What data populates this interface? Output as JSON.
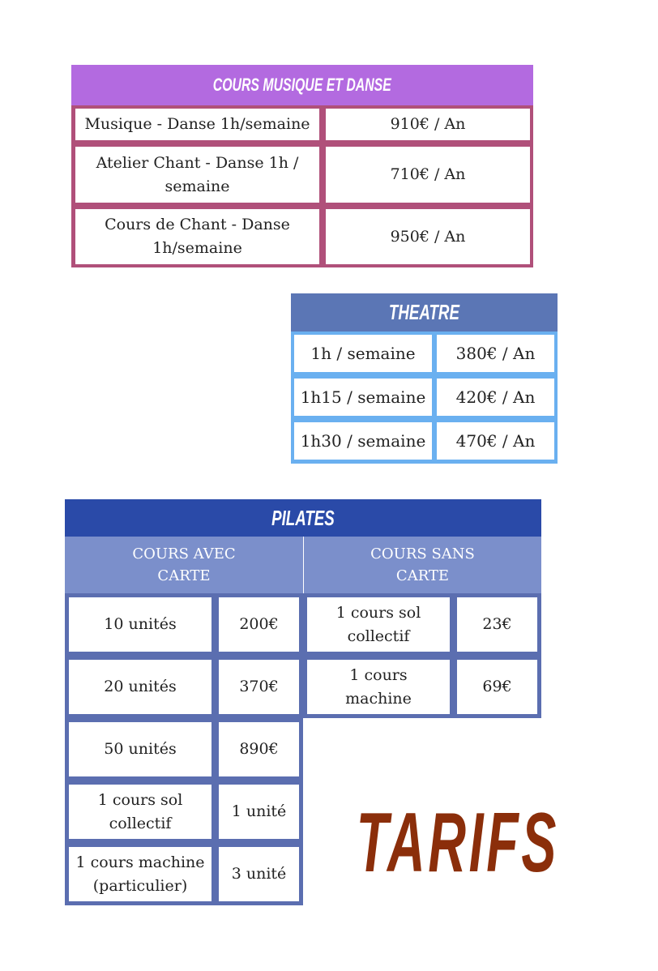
{
  "colors": {
    "music_header": "#b36ae0",
    "music_border": "#b0507a",
    "theatre_header": "#5b76b5",
    "theatre_border": "#6ab0f0",
    "pilates_header": "#2a4aa8",
    "pilates_sub": "#7b8fcb",
    "pilates_border": "#5b6eb0",
    "tarifs": "#8b2e0a"
  },
  "music": {
    "title": "COURS MUSIQUE ET DANSE",
    "rows": [
      {
        "label": "Musique - Danse 1h/semaine",
        "price": "910€  / An"
      },
      {
        "label": "Atelier Chant - Danse 1h / semaine",
        "price": "710€  / An"
      },
      {
        "label": "Cours de Chant - Danse 1h/semaine",
        "price": "950€  / An"
      }
    ]
  },
  "theatre": {
    "title": "THEATRE",
    "rows": [
      {
        "label": "1h / semaine",
        "price": "380€ / An"
      },
      {
        "label": "1h15 / semaine",
        "price": "420€ / An"
      },
      {
        "label": "1h30 / semaine",
        "price": "470€ / An"
      }
    ]
  },
  "pilates": {
    "title": "PILATES",
    "with_card": "COURS AVEC CARTE",
    "without_card": "COURS SANS CARTE",
    "card_rows": [
      {
        "label": "10 unités",
        "price": "200€"
      },
      {
        "label": "20 unités",
        "price": "370€"
      },
      {
        "label": "50 unités",
        "price": "890€"
      },
      {
        "label": "1 cours sol collectif",
        "price": "1 unité"
      },
      {
        "label": "1 cours machine (particulier)",
        "price": "3 unité"
      }
    ],
    "nocard_rows": [
      {
        "label": "1 cours sol collectif",
        "price": "23€"
      },
      {
        "label": "1 cours machine",
        "price": "69€"
      }
    ]
  },
  "tarifs": "TARIFS"
}
